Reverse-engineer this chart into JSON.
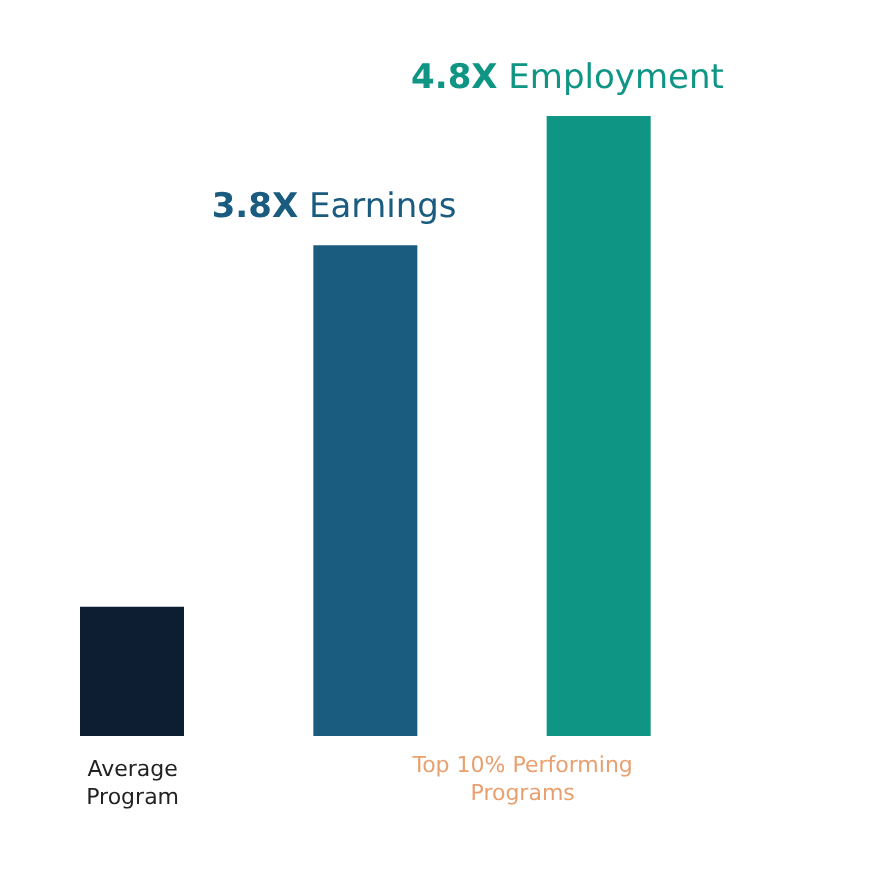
{
  "chart_data": {
    "type": "bar",
    "categories": [
      "Average Program",
      null,
      null
    ],
    "values": [
      1,
      3.8,
      4.8
    ],
    "colors": [
      "#0d1e33",
      "#1a5b80",
      "#0e9584"
    ],
    "value_labels": [
      null,
      "3.8X Earnings",
      "4.8X Employment"
    ],
    "annotations": [
      "Top 10% Performing Programs"
    ],
    "grid": false,
    "legend": false
  }
}
